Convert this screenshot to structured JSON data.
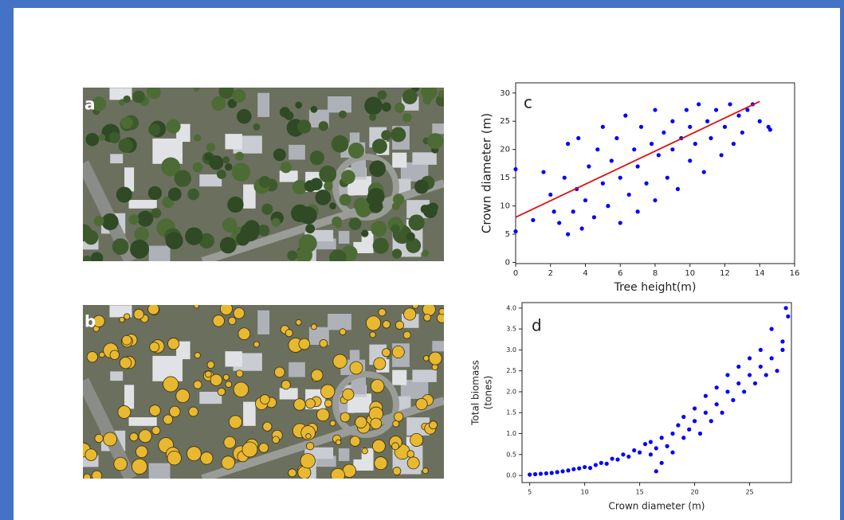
{
  "images": [
    {
      "label": "a"
    },
    {
      "label": "b"
    }
  ],
  "chart_data": [
    {
      "type": "scatter",
      "panel_label": "c",
      "xlabel": "Tree height(m)",
      "ylabel": "Crown diameter (m)",
      "xlim": [
        0,
        16
      ],
      "ylim": [
        -0.2,
        31.8
      ],
      "xticks": [
        0,
        2,
        4,
        6,
        8,
        10,
        12,
        14,
        16
      ],
      "yticks": [
        0,
        5,
        10,
        15,
        20,
        25,
        30
      ],
      "series": [
        {
          "color": "#0000ff",
          "x": [
            0,
            0,
            1,
            1.6,
            2,
            2.2,
            2.5,
            2.8,
            3,
            3,
            3.3,
            3.5,
            3.6,
            3.8,
            4,
            4.2,
            4.5,
            4.7,
            5,
            5,
            5.3,
            5.5,
            5.8,
            6,
            6,
            6.3,
            6.5,
            6.8,
            7,
            7,
            7.2,
            7.5,
            7.8,
            8,
            8,
            8.2,
            8.5,
            8.7,
            9,
            9,
            9.3,
            9.5,
            9.8,
            10,
            10,
            10.3,
            10.5,
            10.8,
            11,
            11.2,
            11.5,
            11.8,
            12,
            12.3,
            12.5,
            12.8,
            13,
            13.3,
            13.6,
            14,
            14.5,
            14.6
          ],
          "values": [
            5.5,
            16.5,
            7.5,
            16,
            12,
            9,
            7,
            15,
            5,
            21,
            9,
            13,
            22,
            6,
            11,
            17,
            8,
            20,
            14,
            24,
            10,
            18,
            22,
            7,
            15,
            26,
            12,
            20,
            9,
            17,
            24,
            14,
            21,
            11,
            27,
            19,
            23,
            15,
            25,
            20,
            13,
            22,
            27,
            18,
            24,
            21,
            28,
            16,
            25,
            22,
            27,
            19,
            24,
            28,
            21,
            26,
            23,
            27,
            28,
            25,
            24,
            23.5
          ]
        },
        {
          "type": "line",
          "color": "#e01010",
          "x": [
            0,
            14
          ],
          "values": [
            8,
            28.5
          ]
        }
      ]
    },
    {
      "type": "scatter",
      "panel_label": "d",
      "xlabel": "Crown diameter (m)",
      "ylabel": [
        "Total biomass",
        "(tones)"
      ],
      "xlim": [
        4.3,
        28.8
      ],
      "ylim": [
        -0.17,
        4.13
      ],
      "xticks": [
        5,
        10,
        15,
        20,
        25
      ],
      "yticks": [
        {
          "value": 0,
          "label": "0.0"
        },
        0.5,
        {
          "value": 1,
          "label": "1.0"
        },
        1.5,
        {
          "value": 2,
          "label": "2.0"
        },
        2.5,
        {
          "value": 3,
          "label": "3.0"
        },
        3.5,
        {
          "value": 4,
          "label": "4.0"
        }
      ],
      "series": [
        {
          "color": "#0000ff",
          "x": [
            5,
            5.5,
            6,
            6.5,
            7,
            7.5,
            8,
            8.5,
            9,
            9.5,
            10,
            10.5,
            11,
            11.5,
            12,
            12.5,
            13,
            13.5,
            14,
            14.5,
            15,
            15.5,
            16,
            16,
            16.5,
            17,
            17,
            17.5,
            18,
            18,
            18.5,
            19,
            19,
            19.5,
            20,
            20,
            20.5,
            21,
            21,
            21.5,
            22,
            22,
            22.5,
            23,
            23,
            23.5,
            24,
            24,
            24.5,
            25,
            25,
            25.5,
            26,
            26,
            26.5,
            27,
            27,
            27.5,
            28,
            28,
            28.3,
            28.5,
            16.5
          ],
          "values": [
            0.02,
            0.03,
            0.04,
            0.05,
            0.06,
            0.08,
            0.1,
            0.12,
            0.15,
            0.17,
            0.2,
            0.18,
            0.25,
            0.3,
            0.28,
            0.4,
            0.38,
            0.5,
            0.45,
            0.6,
            0.55,
            0.75,
            0.5,
            0.8,
            0.65,
            0.9,
            0.3,
            0.7,
            1.0,
            0.55,
            1.2,
            0.9,
            1.4,
            1.1,
            1.3,
            1.6,
            1.0,
            1.5,
            1.9,
            1.3,
            1.7,
            2.1,
            1.5,
            2.0,
            2.4,
            1.8,
            2.2,
            2.6,
            2.0,
            2.4,
            2.8,
            2.2,
            2.6,
            3.0,
            2.4,
            2.8,
            3.5,
            2.5,
            3.2,
            3.0,
            4.0,
            3.8,
            0.1
          ]
        }
      ]
    }
  ]
}
